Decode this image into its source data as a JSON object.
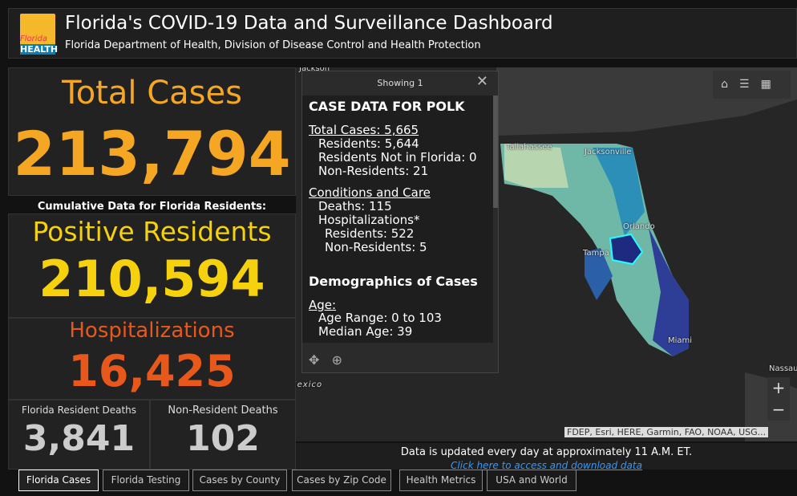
{
  "header": {
    "logo": [
      "Florida",
      "HEALTH"
    ],
    "title": "Florida's COVID-19 Data and Surveillance Dashboard",
    "subtitle": "Florida Department of Health, Division of Disease Control and Health Protection"
  },
  "total_cases": {
    "label": "Total Cases",
    "value": "213,794"
  },
  "note": "Cumulative Data for Florida Residents:",
  "positive_residents": {
    "label": "Positive Residents",
    "value": "210,594"
  },
  "hospitalizations": {
    "label": "Hospitalizations",
    "value": "16,425"
  },
  "deaths": [
    {
      "label": "Florida Resident Deaths",
      "value": "3,841"
    },
    {
      "label": "Non-Resident Deaths",
      "value": "102"
    }
  ],
  "popup": {
    "count": "Showing 1",
    "title": "CASE DATA FOR POLK",
    "lines": [
      "Total Cases: 5,665",
      "Residents: 5,644",
      "Residents Not in Florida: 0",
      "Non-Residents: 21",
      "Conditions and Care",
      "Deaths: 115",
      "Hospitalizations*",
      "Residents: 522",
      "Non-Residents: 5",
      "Demographics of Cases",
      "Age:",
      "Age Range: 0 to 103",
      "Median Age: 39"
    ]
  },
  "map_labels": [
    "Jackson",
    "Tallahassee",
    "Jacksonville",
    "Orlando",
    "Tampa",
    "Miami",
    "Nassau",
    "Mexico"
  ],
  "attribution": "FDEP, Esri, HERE, Garmin, FAO, NOAA, USG...",
  "update_note": "Data is updated every day at approximately 11 A.M. ET.",
  "download_link": "Click here to access and download data",
  "tabs": [
    "Florida Cases",
    "Florida Testing",
    "Cases by County",
    "Cases by Zip Code",
    "Health Metrics",
    "USA and World"
  ]
}
